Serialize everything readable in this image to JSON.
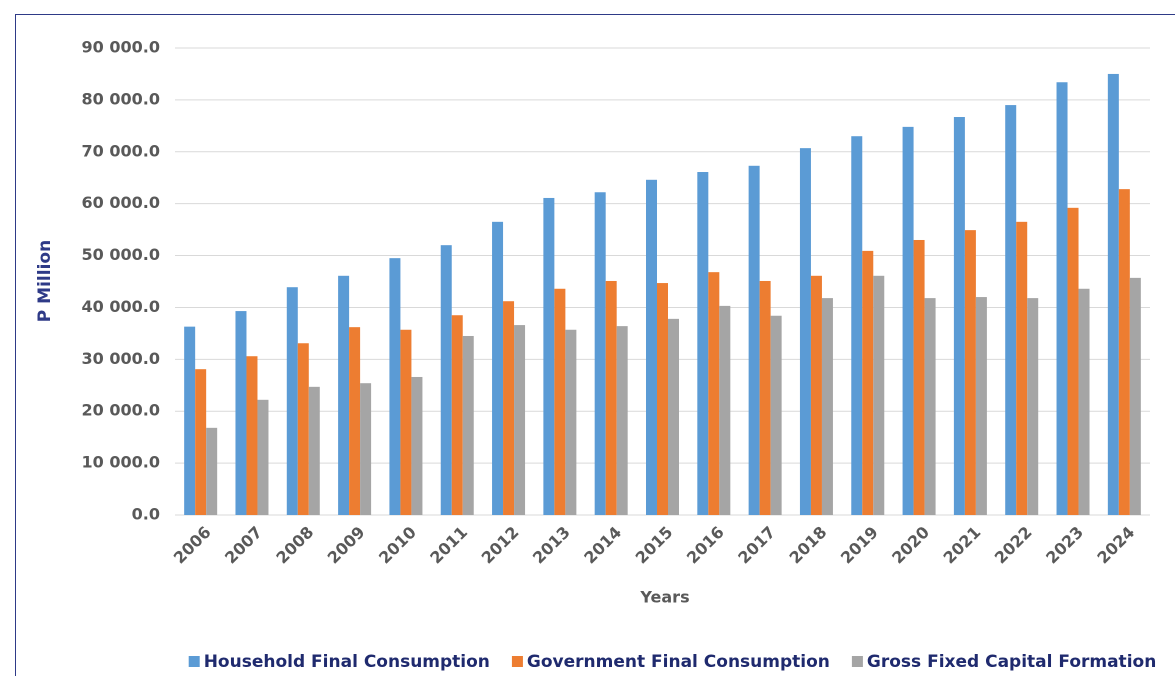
{
  "chart_data": {
    "type": "bar",
    "x_label": "Years",
    "y_label": "P Million",
    "categories": [
      "2006",
      "2007",
      "2008",
      "2009",
      "2010",
      "2011",
      "2012",
      "2013",
      "2014",
      "2015",
      "2016",
      "2017",
      "2018",
      "2019",
      "2020",
      "2021",
      "2022",
      "2023",
      "2024"
    ],
    "series": [
      {
        "name": "Household Final Consumption",
        "color": "#5b9bd5",
        "values": [
          36300,
          39300,
          43900,
          46100,
          49500,
          52000,
          56500,
          61100,
          62200,
          64600,
          66100,
          67300,
          70700,
          73000,
          74800,
          76700,
          79000,
          83400,
          85000
        ]
      },
      {
        "name": "Government Final Consumption",
        "color": "#ed7d31",
        "values": [
          28100,
          30600,
          33100,
          36200,
          35700,
          38500,
          41200,
          43600,
          45100,
          44700,
          46800,
          45100,
          46100,
          50900,
          53000,
          54900,
          56500,
          59200,
          62800
        ]
      },
      {
        "name": "Gross Fixed Capital Formation",
        "color": "#a5a5a5",
        "values": [
          16800,
          22200,
          24700,
          25400,
          26600,
          34500,
          36600,
          35700,
          36400,
          37800,
          40300,
          38400,
          41800,
          46100,
          41800,
          42000,
          41800,
          43600,
          45700
        ]
      }
    ],
    "ylim": [
      0,
      90000
    ],
    "yticks": [
      {
        "value": 0,
        "label": "0.0"
      },
      {
        "value": 10000,
        "label": "10 000.0"
      },
      {
        "value": 20000,
        "label": "20 000.0"
      },
      {
        "value": 30000,
        "label": "30 000.0"
      },
      {
        "value": 40000,
        "label": "40 000.0"
      },
      {
        "value": 50000,
        "label": "50 000.0"
      },
      {
        "value": 60000,
        "label": "60 000.0"
      },
      {
        "value": 70000,
        "label": "70 000.0"
      },
      {
        "value": 80000,
        "label": "80 000.0"
      },
      {
        "value": 90000,
        "label": "90 000.0"
      }
    ],
    "grid": true,
    "legend": "bottom"
  }
}
